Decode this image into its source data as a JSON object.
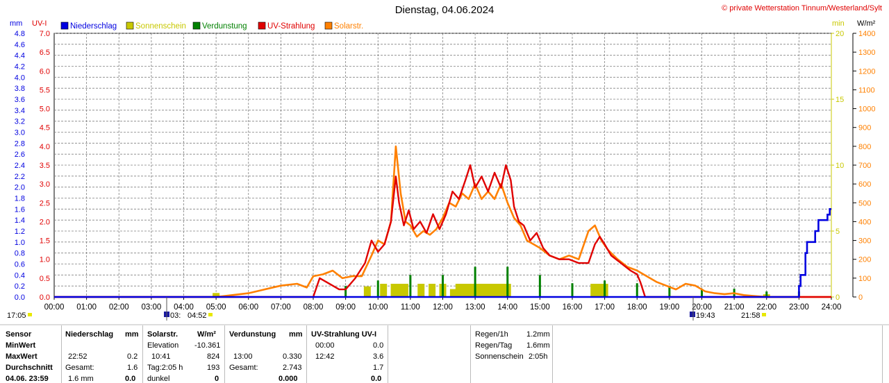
{
  "header": {
    "title": "Dienstag, 04.06.2024",
    "copyright": "© private Wetterstation Tinnum/Westerland/Sylt",
    "unit_mm": "mm",
    "unit_uvi": "UV-I",
    "unit_min": "min",
    "unit_wm2": "W/m²"
  },
  "colors": {
    "precip": "#0000e0",
    "sun": "#c8c800",
    "evap": "#008000",
    "uv": "#e00000",
    "solar": "#ff8000",
    "sun_axis": "#c8c800"
  },
  "legend": [
    {
      "label": "Niederschlag",
      "color": "#0000e0"
    },
    {
      "label": "Sonnenschein",
      "color": "#c8c800"
    },
    {
      "label": "Verdunstung",
      "color": "#008000"
    },
    {
      "label": "UV-Strahlung",
      "color": "#e00000"
    },
    {
      "label": "Solarstr.",
      "color": "#ff8000"
    }
  ],
  "chart_data": {
    "type": "line",
    "x_range": [
      0,
      24
    ],
    "x_ticks": [
      "00:00",
      "01:00",
      "02:00",
      "03:00",
      "04:00",
      "05:00",
      "06:00",
      "07:00",
      "08:00",
      "09:00",
      "10:00",
      "11:00",
      "12:00",
      "13:00",
      "14:00",
      "15:00",
      "16:00",
      "17:00",
      "18:00",
      "19:00",
      "20:00",
      "21:00",
      "22:00",
      "23:00",
      "24:00"
    ],
    "axes": {
      "mm": {
        "min": 0,
        "max": 4.8,
        "ticks": [
          "0.0",
          "0.2",
          "0.4",
          "0.6",
          "0.8",
          "1.0",
          "1.2",
          "1.4",
          "1.6",
          "1.8",
          "2.0",
          "2.2",
          "2.4",
          "2.6",
          "2.8",
          "3.0",
          "3.2",
          "3.4",
          "3.6",
          "3.8",
          "4.0",
          "4.2",
          "4.4",
          "4.6",
          "4.8"
        ]
      },
      "uvi": {
        "min": 0,
        "max": 7,
        "ticks": [
          "0.0",
          "0.5",
          "1.0",
          "1.5",
          "2.0",
          "2.5",
          "3.0",
          "3.5",
          "4.0",
          "4.5",
          "5.0",
          "5.5",
          "6.0",
          "6.5",
          "7.0"
        ]
      },
      "min": {
        "min": 0,
        "max": 20,
        "ticks": [
          "0",
          "5",
          "10",
          "15",
          "20"
        ]
      },
      "wm2": {
        "min": 0,
        "max": 1400,
        "ticks": [
          "0",
          "100",
          "200",
          "300",
          "400",
          "500",
          "600",
          "700",
          "800",
          "900",
          "1000",
          "1100",
          "1200",
          "1300",
          "1400"
        ]
      }
    },
    "series": [
      {
        "name": "Niederschlag",
        "type": "step",
        "axis": "mm",
        "x": [
          0,
          22.85,
          23.0,
          23.05,
          23.2,
          23.25,
          23.5,
          23.6,
          23.85,
          23.88,
          23.95,
          24.0
        ],
        "y": [
          0,
          0,
          0.2,
          0.4,
          0.8,
          1.0,
          1.2,
          1.4,
          1.4,
          1.5,
          1.6,
          1.6
        ]
      },
      {
        "name": "Sonnenschein",
        "type": "bar",
        "axis": "min",
        "x": [
          5.0,
          9.67,
          10.17,
          10.5,
          10.67,
          10.83,
          11.33,
          11.67,
          12.0,
          12.33,
          12.5,
          12.67,
          12.83,
          13.0,
          13.17,
          13.33,
          13.5,
          13.67,
          13.83,
          14.0,
          16.67,
          16.83,
          17.0,
          22.0
        ],
        "y": [
          0.3,
          0.8,
          1.0,
          1.0,
          1.0,
          1.0,
          1.0,
          1.0,
          1.0,
          0.6,
          1.0,
          1.0,
          1.0,
          1.0,
          1.0,
          1.0,
          1.0,
          1.0,
          1.0,
          1.0,
          1.0,
          1.0,
          1.0,
          0.2
        ]
      },
      {
        "name": "Verdunstung",
        "type": "spike",
        "axis": "mm",
        "x": [
          9.0,
          10.0,
          11.0,
          12.0,
          13.0,
          14.0,
          15.0,
          16.0,
          17.0,
          18.0,
          19.0,
          20.0,
          21.0,
          22.0,
          23.0
        ],
        "y": [
          0.04,
          0.06,
          0.08,
          0.08,
          0.11,
          0.11,
          0.08,
          0.05,
          0.06,
          0.05,
          0.04,
          0.03,
          0.03,
          0.02,
          0.02
        ]
      },
      {
        "name": "UV-Strahlung",
        "type": "line",
        "axis": "uvi",
        "x": [
          0,
          8.0,
          8.2,
          8.4,
          8.6,
          8.8,
          9.0,
          9.3,
          9.6,
          9.8,
          10.0,
          10.2,
          10.4,
          10.55,
          10.65,
          10.8,
          10.95,
          11.1,
          11.3,
          11.5,
          11.7,
          11.9,
          12.1,
          12.3,
          12.5,
          12.7,
          12.85,
          13.0,
          13.2,
          13.4,
          13.6,
          13.8,
          13.95,
          14.1,
          14.2,
          14.35,
          14.5,
          14.7,
          14.9,
          15.1,
          15.3,
          15.6,
          15.9,
          16.2,
          16.5,
          16.7,
          16.85,
          17.0,
          17.2,
          17.5,
          17.8,
          18.0,
          18.1,
          18.25,
          24
        ],
        "y": [
          0,
          0,
          0.5,
          0.4,
          0.3,
          0.2,
          0.2,
          0.5,
          0.9,
          1.5,
          1.2,
          1.4,
          2.0,
          3.2,
          2.5,
          1.9,
          2.3,
          1.8,
          2.0,
          1.7,
          2.2,
          1.8,
          2.2,
          2.8,
          2.6,
          3.1,
          3.5,
          2.9,
          3.2,
          2.8,
          3.3,
          2.9,
          3.5,
          3.1,
          2.4,
          2.0,
          1.9,
          1.5,
          1.7,
          1.3,
          1.1,
          1.0,
          1.0,
          0.9,
          0.9,
          1.4,
          1.6,
          1.4,
          1.1,
          0.9,
          0.7,
          0.6,
          0.4,
          0.0,
          0
        ]
      },
      {
        "name": "Solarstr.",
        "type": "line",
        "axis": "wm2",
        "x": [
          0,
          5.0,
          5.5,
          6.0,
          6.5,
          7.0,
          7.5,
          7.8,
          8.0,
          8.3,
          8.6,
          8.9,
          9.2,
          9.5,
          9.8,
          10.0,
          10.2,
          10.4,
          10.55,
          10.7,
          10.85,
          11.0,
          11.2,
          11.4,
          11.6,
          11.8,
          12.0,
          12.2,
          12.4,
          12.6,
          12.8,
          13.0,
          13.2,
          13.4,
          13.6,
          13.8,
          14.0,
          14.2,
          14.4,
          14.6,
          14.8,
          15.0,
          15.3,
          15.6,
          15.9,
          16.2,
          16.5,
          16.7,
          16.9,
          17.1,
          17.4,
          17.7,
          18.0,
          18.3,
          18.6,
          18.9,
          19.2,
          19.5,
          19.8,
          20.1,
          20.4,
          20.7,
          21.0,
          21.3,
          21.6,
          22.0,
          24
        ],
        "y": [
          0,
          0,
          10,
          20,
          40,
          60,
          70,
          50,
          110,
          120,
          140,
          100,
          110,
          110,
          220,
          300,
          280,
          400,
          800,
          550,
          400,
          380,
          320,
          350,
          330,
          360,
          420,
          500,
          480,
          550,
          520,
          600,
          520,
          560,
          520,
          600,
          500,
          420,
          380,
          300,
          280,
          260,
          220,
          200,
          220,
          200,
          350,
          380,
          300,
          250,
          200,
          160,
          140,
          110,
          80,
          60,
          40,
          70,
          60,
          30,
          20,
          15,
          20,
          10,
          5,
          0,
          0
        ]
      }
    ],
    "bottom_markers": {
      "left_time": "17:05",
      "sunrise_markers": [
        "03:",
        "04:52"
      ],
      "sunset_markers": [
        "19:43",
        "21:58"
      ]
    }
  },
  "stats": {
    "col_sensor": {
      "header": "Sensor",
      "rows": [
        "MinWert",
        "MaxWert",
        "Durchschnitt",
        "04.06. 23:59"
      ]
    },
    "col_precip": {
      "header": "Niederschlag",
      "unit": "mm",
      "r1": [
        "",
        ""
      ],
      "r2": [
        "22:52",
        "0.2"
      ],
      "r3": [
        "Gesamt:",
        "1.6"
      ],
      "r4": [
        "1.6 mm",
        "0.0"
      ]
    },
    "col_solar": {
      "header": "Solarstr.",
      "unit": "W/m²",
      "r1": [
        "Elevation",
        "-10.361"
      ],
      "r2": [
        "10:41",
        "824"
      ],
      "r3": [
        "Tag:2:05 h",
        "193"
      ],
      "r4": [
        "dunkel",
        "0"
      ]
    },
    "col_evap": {
      "header": "Verdunstung",
      "unit": "mm",
      "r1": [
        "",
        ""
      ],
      "r2": [
        "13:00",
        "0.330"
      ],
      "r3": [
        "Gesamt:",
        "2.743"
      ],
      "r4": [
        "",
        "0.000"
      ]
    },
    "col_uv": {
      "header": "UV-Strahlung UV-I",
      "unit": "",
      "r1": [
        "00:00",
        "0.0"
      ],
      "r2": [
        "12:42",
        "3.6"
      ],
      "r3": [
        "",
        "1.7"
      ],
      "r4": [
        "",
        "0.0"
      ]
    },
    "summary": [
      {
        "label": "Regen/1h",
        "value": "1.2mm"
      },
      {
        "label": "Regen/Tag",
        "value": "1.6mm"
      },
      {
        "label": "Sonnenschein",
        "value": "2:05h"
      }
    ]
  }
}
